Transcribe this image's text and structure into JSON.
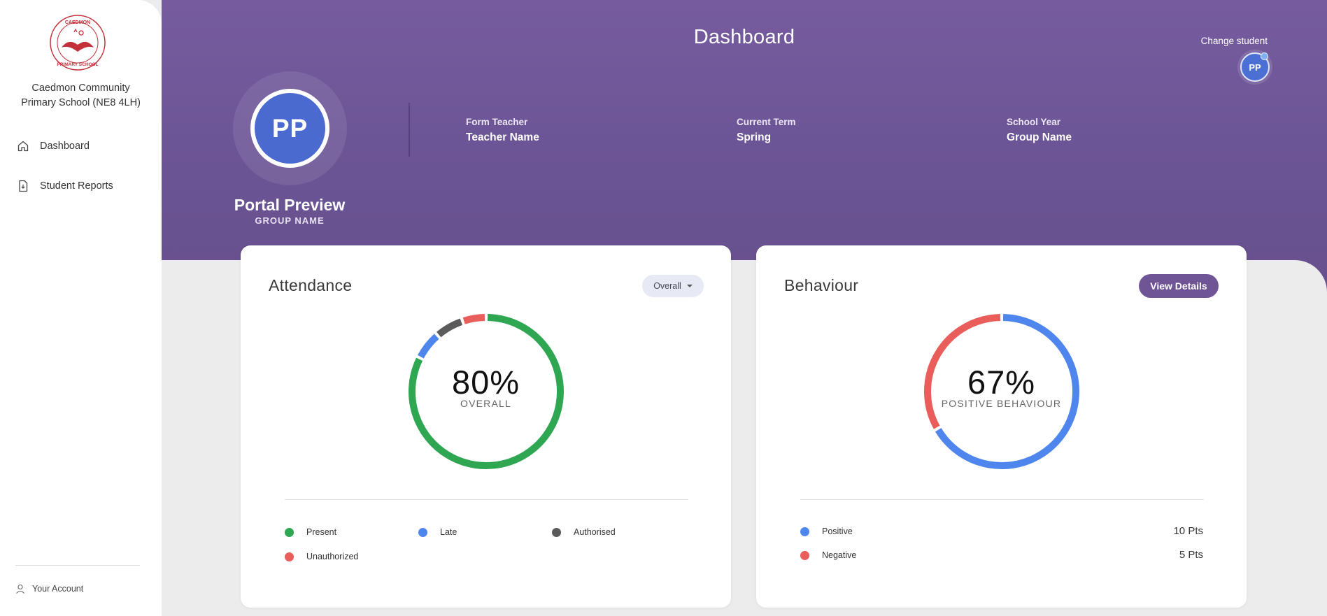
{
  "sidebar": {
    "logo_text": "CAEDMON PRIMARY SCHOOL",
    "school_name_line1": "Caedmon Community",
    "school_name_line2": "Primary School (NE8 4LH)",
    "items": [
      {
        "label": "Dashboard",
        "icon": "home-icon"
      },
      {
        "label": "Student Reports",
        "icon": "report-icon"
      }
    ],
    "account_label": "Your Account",
    "account_icon": "user-icon"
  },
  "header": {
    "title": "Dashboard",
    "change_student_label": "Change student",
    "mini_avatar_initials": "PP",
    "avatar_initials": "PP",
    "student_name": "Portal Preview",
    "student_group": "GROUP NAME",
    "info": [
      {
        "label": "Form Teacher",
        "value": "Teacher Name"
      },
      {
        "label": "Current Term",
        "value": "Spring"
      },
      {
        "label": "School Year",
        "value": "Group Name"
      }
    ],
    "colors": {
      "header_bg": "#6f5596",
      "avatar_bg": "#4a6acf"
    }
  },
  "attendance": {
    "title": "Attendance",
    "dropdown_value": "Overall",
    "center_value": "80%",
    "center_label": "OVERALL",
    "legend": [
      {
        "label": "Present",
        "color": "#2fa652"
      },
      {
        "label": "Late",
        "color": "#4f86ee"
      },
      {
        "label": "Authorised",
        "color": "#5b5b5b"
      },
      {
        "label": "Unauthorized",
        "color": "#e95d5b"
      }
    ]
  },
  "behaviour": {
    "title": "Behaviour",
    "button_label": "View Details",
    "center_value": "67%",
    "center_label": "POSITIVE BEHAVIOUR",
    "legend": [
      {
        "label": "Positive",
        "value": "10 Pts",
        "color": "#4f86ee"
      },
      {
        "label": "Negative",
        "value": "5 Pts",
        "color": "#e95d5b"
      }
    ]
  },
  "chart_data": [
    {
      "type": "pie",
      "title": "Attendance",
      "categories": [
        "Present",
        "Late",
        "Authorised",
        "Unauthorized"
      ],
      "values": [
        80,
        6,
        6,
        5
      ],
      "colors": [
        "#2fa652",
        "#4f86ee",
        "#5b5b5b",
        "#e95d5b"
      ],
      "center_text": "80%"
    },
    {
      "type": "pie",
      "title": "Behaviour",
      "categories": [
        "Positive",
        "Negative"
      ],
      "values": [
        10,
        5
      ],
      "colors": [
        "#4f86ee",
        "#e95d5b"
      ],
      "center_text": "67%"
    }
  ]
}
